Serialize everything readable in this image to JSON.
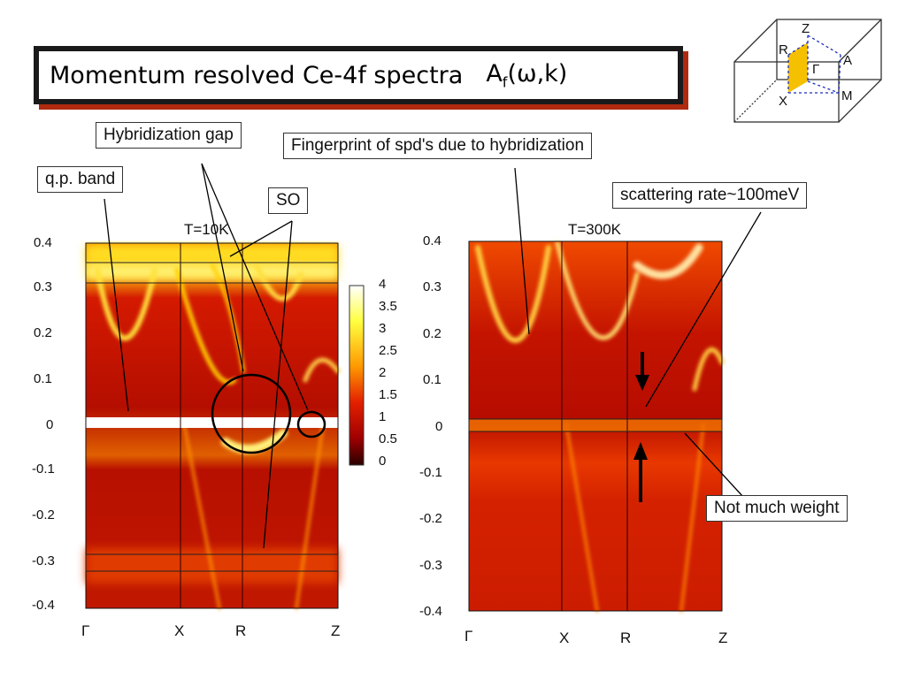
{
  "title": {
    "main": "Momentum resolved Ce-4f spectra",
    "math_base": "A",
    "math_sub": "f",
    "math_args": "(ω,k)"
  },
  "callouts": {
    "hybridization_gap": "Hybridization gap",
    "fingerprint": "Fingerprint of spd's due to hybridization",
    "qp_band": "q.p. band",
    "so": "SO",
    "scattering_rate": "scattering rate~100meV",
    "not_much_weight": "Not much weight"
  },
  "panels": {
    "left": {
      "temperature": "T=10K"
    },
    "right": {
      "temperature": "T=300K"
    }
  },
  "brillouin_zone": {
    "labels": [
      "Z",
      "R",
      "Γ",
      "A",
      "X",
      "M"
    ],
    "highlight_color": "#f5c000"
  },
  "colorbar": {
    "ticks": [
      "4",
      "3.5",
      "3",
      "2.5",
      "2",
      "1.5",
      "1",
      "0.5",
      "0"
    ],
    "colors": [
      "#ffffff",
      "#ffff40",
      "#ff9900",
      "#e32000",
      "#a00000",
      "#2a0000"
    ]
  },
  "chart_data": [
    {
      "type": "heatmap",
      "temperature": "T=10K",
      "y_ticks": [
        "0.4",
        "0.3",
        "0.2",
        "0.1",
        "0",
        "-0.1",
        "-0.2",
        "-0.3",
        "-0.4"
      ],
      "ylim": [
        -0.4,
        0.4
      ],
      "k_path": [
        "Γ",
        "X",
        "R",
        "Z"
      ],
      "color_range": [
        0,
        4
      ]
    },
    {
      "type": "heatmap",
      "temperature": "T=300K",
      "y_ticks": [
        "0.4",
        "0.3",
        "0.2",
        "0.1",
        "0",
        "-0.1",
        "-0.2",
        "-0.3",
        "-0.4"
      ],
      "ylim": [
        -0.4,
        0.4
      ],
      "k_path": [
        "Γ",
        "X",
        "R",
        "Z"
      ],
      "color_range": [
        0,
        4
      ]
    }
  ]
}
